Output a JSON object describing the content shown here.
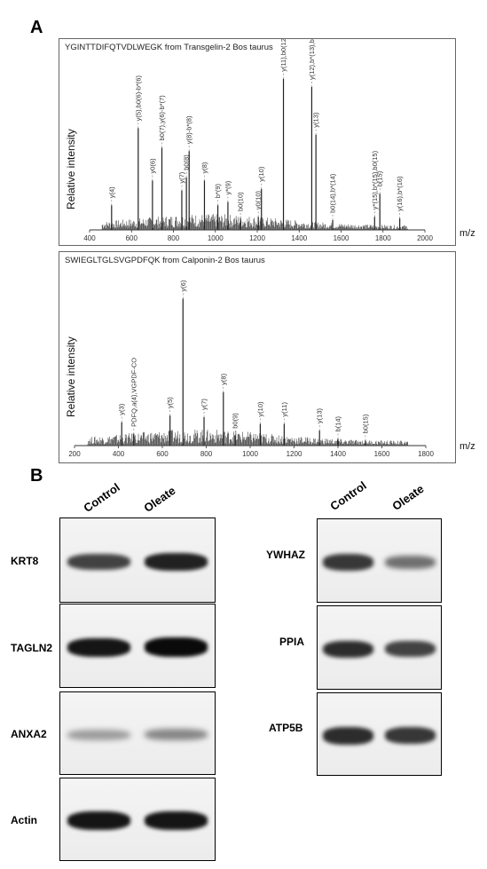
{
  "panel_a_letter": "A",
  "panel_b_letter": "B",
  "mz_label": "m/z",
  "ylabel": "Relative intensity",
  "chart_data": [
    {
      "type": "bar",
      "title_sequence": "YGINTTDIFQTVDLWEGK",
      "title_from": " from ",
      "title_protein": "Transgelin-2 Bos taurus",
      "xlim": [
        400,
        2000
      ],
      "xticks": [
        400,
        600,
        800,
        1000,
        1200,
        1400,
        1600,
        1800,
        2000
      ],
      "peaks": [
        {
          "mz": 505,
          "h": 0.15,
          "label": "y(4)"
        },
        {
          "mz": 632,
          "h": 0.62,
          "label": "y(5),b0(6)-b*(6)"
        },
        {
          "mz": 700,
          "h": 0.3,
          "label": "y0(6)"
        },
        {
          "mz": 745,
          "h": 0.5,
          "label": "b0(7),y(6)-b*(7)"
        },
        {
          "mz": 840,
          "h": 0.24,
          "label": "y(7)"
        },
        {
          "mz": 862,
          "h": 0.32,
          "label": "b0(8)"
        },
        {
          "mz": 875,
          "h": 0.48,
          "label": "y(8)-b*(8)"
        },
        {
          "mz": 948,
          "h": 0.3,
          "label": "y(8)"
        },
        {
          "mz": 1012,
          "h": 0.15,
          "label": "b*(9)"
        },
        {
          "mz": 1060,
          "h": 0.17,
          "label": "y*(9)"
        },
        {
          "mz": 1120,
          "h": 0.07,
          "label": "b0(10)"
        },
        {
          "mz": 1205,
          "h": 0.08,
          "label": "y0(10)"
        },
        {
          "mz": 1220,
          "h": 0.25,
          "label": "y(10)"
        },
        {
          "mz": 1325,
          "h": 0.92,
          "label": "y(11),b0(12)"
        },
        {
          "mz": 1460,
          "h": 0.87,
          "label": "y(12),b*(13),b0(13)"
        },
        {
          "mz": 1480,
          "h": 0.58,
          "label": "y(13)"
        },
        {
          "mz": 1560,
          "h": 0.06,
          "label": "b0(14),b*(14)"
        },
        {
          "mz": 1760,
          "h": 0.08,
          "label": "y*(15),b*(15),b0(15)"
        },
        {
          "mz": 1785,
          "h": 0.22,
          "label": "b(15)"
        },
        {
          "mz": 1880,
          "h": 0.07,
          "label": "y(16),b*(16)"
        }
      ]
    },
    {
      "type": "bar",
      "title_sequence": "SWIEGLTGLSVGPDFQK",
      "title_from": " from ",
      "title_protein": "Calponin-2 Bos taurus",
      "xlim": [
        200,
        1800
      ],
      "xticks": [
        200,
        400,
        600,
        800,
        1000,
        1200,
        1400,
        1600,
        1800
      ],
      "peaks": [
        {
          "mz": 415,
          "h": 0.14,
          "label": "y(3)"
        },
        {
          "mz": 470,
          "h": 0.07,
          "label": "PDFQ,a(4),VGPDF-CO"
        },
        {
          "mz": 635,
          "h": 0.18,
          "label": "y(5)"
        },
        {
          "mz": 694,
          "h": 0.88,
          "label": "y(6)"
        },
        {
          "mz": 790,
          "h": 0.17,
          "label": "y(7)"
        },
        {
          "mz": 878,
          "h": 0.32,
          "label": "y(8)"
        },
        {
          "mz": 932,
          "h": 0.06,
          "label": "b0(9)"
        },
        {
          "mz": 1046,
          "h": 0.13,
          "label": "y(10)"
        },
        {
          "mz": 1155,
          "h": 0.13,
          "label": "y(11)"
        },
        {
          "mz": 1316,
          "h": 0.09,
          "label": "y(13)"
        },
        {
          "mz": 1400,
          "h": 0.04,
          "label": "b(14)"
        },
        {
          "mz": 1525,
          "h": 0.03,
          "label": "b0(15)"
        }
      ]
    }
  ],
  "blots": {
    "left_columns": [
      "Control",
      "Oleate"
    ],
    "right_columns": [
      "Control",
      "Oleate"
    ],
    "left": [
      {
        "label": "KRT8",
        "bands": [
          0.75,
          0.9
        ]
      },
      {
        "label": "TAGLN2",
        "bands": [
          0.95,
          1.0
        ]
      },
      {
        "label": "ANXA2",
        "bands": [
          0.35,
          0.45
        ]
      },
      {
        "label": "Actin",
        "bands": [
          0.95,
          0.95
        ]
      }
    ],
    "right": [
      {
        "label": "YWHAZ",
        "bands": [
          0.8,
          0.55
        ]
      },
      {
        "label": "PPIA",
        "bands": [
          0.85,
          0.75
        ]
      },
      {
        "label": "ATP5B",
        "bands": [
          0.85,
          0.8
        ]
      }
    ]
  }
}
